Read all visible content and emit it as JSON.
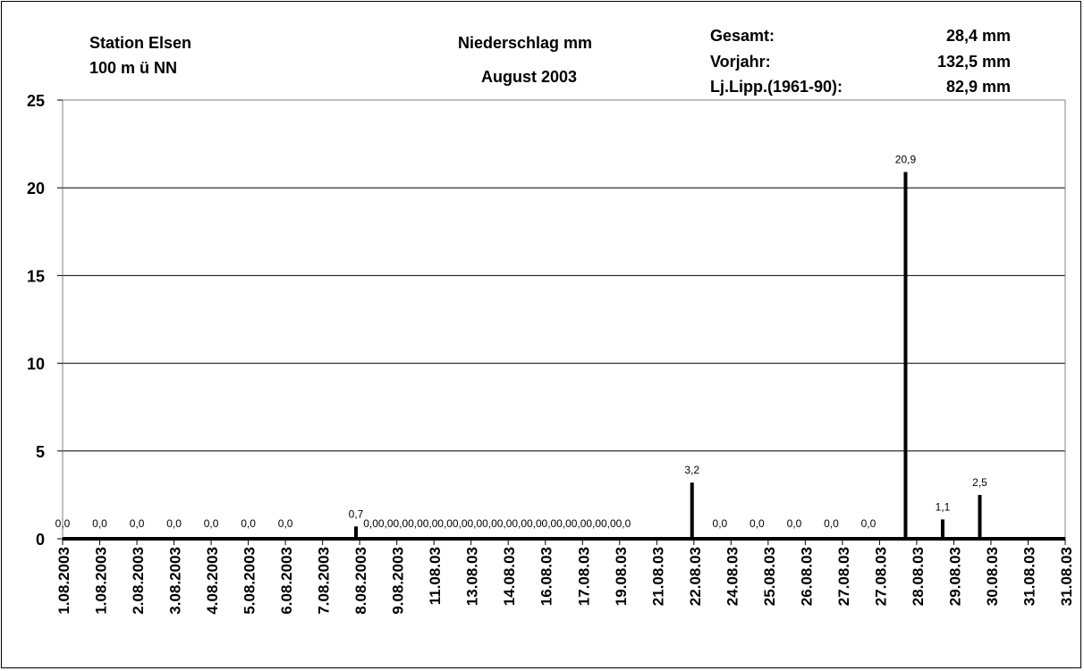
{
  "header": {
    "station": "Station Elsen",
    "elevation": "100 m ü NN",
    "measure": "Niederschlag mm",
    "period": "August 2003",
    "stats": [
      {
        "label": "Gesamt:",
        "value": "28,4 mm"
      },
      {
        "label": "Vorjahr:",
        "value": "132,5 mm"
      },
      {
        "label": "Lj.Lipp.(1961-90):",
        "value": "82,9 mm"
      }
    ]
  },
  "chart_data": {
    "type": "bar",
    "title": "Niederschlag mm",
    "ylim": [
      0,
      25
    ],
    "yticks": [
      0,
      5,
      10,
      15,
      20,
      25
    ],
    "grid": true,
    "categories": [
      "1.08.2003",
      "1.08.2003",
      "2.08.2003",
      "3.08.2003",
      "4.08.2003",
      "5.08.2003",
      "6.08.2003",
      "7.08.2003",
      "8.08.2003",
      "9.08.2003",
      "11.08.03",
      "13.08.03",
      "14.08.03",
      "16.08.03",
      "17.08.03",
      "19.08.03",
      "21.08.03",
      "22.08.03",
      "24.08.03",
      "25.08.03",
      "26.08.03",
      "27.08.03",
      "27.08.03",
      "28.08.03",
      "29.08.03",
      "30.08.03",
      "31.08.03",
      "31.08.03"
    ],
    "points": [
      {
        "x": 0,
        "value": 0.0,
        "label": "0,0"
      },
      {
        "x": 1,
        "value": 0.0,
        "label": "0,0"
      },
      {
        "x": 2,
        "value": 0.0,
        "label": "0,0"
      },
      {
        "x": 3,
        "value": 0.0,
        "label": "0,0"
      },
      {
        "x": 4,
        "value": 0.0,
        "label": "0,0"
      },
      {
        "x": 5,
        "value": 0.0,
        "label": "0,0"
      },
      {
        "x": 6,
        "value": 0.0,
        "label": "0,0"
      },
      {
        "x": 7.9,
        "value": 0.7,
        "label": "0,7"
      },
      {
        "x": 8.3,
        "value": 0.0,
        "label": "0,0"
      },
      {
        "x": 8.7,
        "value": 0.0,
        "label": "0,0"
      },
      {
        "x": 9.1,
        "value": 0.0,
        "label": "0,0"
      },
      {
        "x": 9.5,
        "value": 0.0,
        "label": "0,0"
      },
      {
        "x": 9.9,
        "value": 0.0,
        "label": "0,0"
      },
      {
        "x": 10.3,
        "value": 0.0,
        "label": "0,0"
      },
      {
        "x": 10.7,
        "value": 0.0,
        "label": "0,0"
      },
      {
        "x": 11.1,
        "value": 0.0,
        "label": "0,0"
      },
      {
        "x": 11.5,
        "value": 0.0,
        "label": "0,0"
      },
      {
        "x": 11.9,
        "value": 0.0,
        "label": "0,0"
      },
      {
        "x": 12.3,
        "value": 0.0,
        "label": "0,0"
      },
      {
        "x": 12.7,
        "value": 0.0,
        "label": "0,0"
      },
      {
        "x": 13.1,
        "value": 0.0,
        "label": "0,0"
      },
      {
        "x": 13.5,
        "value": 0.0,
        "label": "0,0"
      },
      {
        "x": 13.9,
        "value": 0.0,
        "label": "0,0"
      },
      {
        "x": 14.3,
        "value": 0.0,
        "label": "0,0"
      },
      {
        "x": 14.7,
        "value": 0.0,
        "label": "0,0"
      },
      {
        "x": 15.1,
        "value": 0.0,
        "label": "0,0"
      },
      {
        "x": 16.95,
        "value": 3.2,
        "label": "3,2"
      },
      {
        "x": 17.7,
        "value": 0.0,
        "label": "0,0"
      },
      {
        "x": 18.7,
        "value": 0.0,
        "label": "0,0"
      },
      {
        "x": 19.7,
        "value": 0.0,
        "label": "0,0"
      },
      {
        "x": 20.7,
        "value": 0.0,
        "label": "0,0"
      },
      {
        "x": 21.7,
        "value": 0.0,
        "label": "0,0"
      },
      {
        "x": 22.7,
        "value": 20.9,
        "label": "20,9"
      },
      {
        "x": 23.7,
        "value": 1.1,
        "label": "1,1"
      },
      {
        "x": 24.7,
        "value": 2.5,
        "label": "2,5"
      }
    ],
    "colors": {
      "bar": "#000000",
      "grid": "#000000",
      "axis": "#808080"
    }
  }
}
